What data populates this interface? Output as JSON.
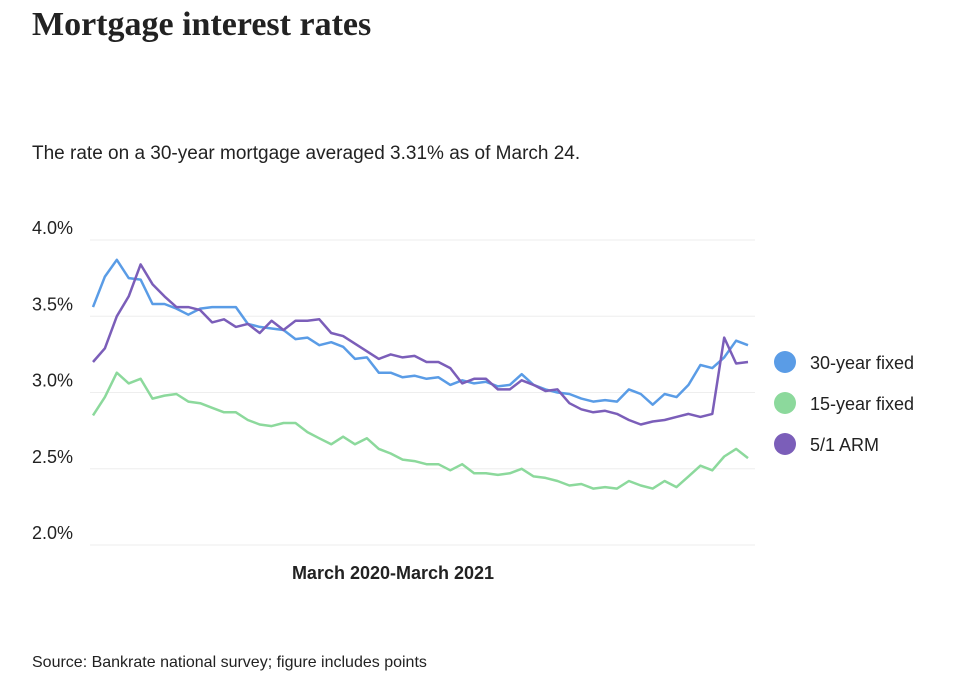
{
  "chart_data": {
    "type": "line",
    "title": "Mortgage interest rates",
    "subtitle": "The rate on a 30-year mortgage averaged 3.31% as of March 24.",
    "x_label": "March 2020-March 2021",
    "source": "Source: Bankrate national survey; figure includes points",
    "categories": [
      null,
      null,
      null,
      null,
      null,
      null,
      null,
      null,
      null,
      null,
      null,
      null,
      null,
      null,
      null,
      null,
      null,
      null,
      null,
      null,
      null,
      null,
      null,
      null,
      null,
      null,
      null,
      null,
      null,
      null,
      null,
      null,
      null,
      null,
      null,
      null,
      null,
      null,
      null,
      null,
      null,
      null,
      null,
      null,
      null,
      null,
      null,
      null,
      null,
      null,
      null,
      null,
      null,
      null,
      null,
      null
    ],
    "series": [
      {
        "name": "30-year fixed",
        "color": "#5a9ce6",
        "values": [
          3.56,
          3.76,
          3.87,
          3.75,
          3.74,
          3.58,
          3.58,
          3.55,
          3.51,
          3.55,
          3.56,
          3.56,
          3.56,
          3.45,
          3.43,
          3.42,
          3.41,
          3.35,
          3.36,
          3.31,
          3.33,
          3.3,
          3.22,
          3.23,
          3.13,
          3.13,
          3.1,
          3.11,
          3.09,
          3.1,
          3.05,
          3.08,
          3.06,
          3.07,
          3.04,
          3.05,
          3.12,
          3.05,
          3.02,
          3.0,
          2.99,
          2.96,
          2.94,
          2.95,
          2.94,
          3.02,
          2.99,
          2.92,
          2.99,
          2.97,
          3.05,
          3.18,
          3.16,
          3.23,
          3.34,
          3.31
        ]
      },
      {
        "name": "15-year fixed",
        "color": "#8cd99c",
        "values": [
          2.85,
          2.97,
          3.13,
          3.06,
          3.09,
          2.96,
          2.98,
          2.99,
          2.94,
          2.93,
          2.9,
          2.87,
          2.87,
          2.82,
          2.79,
          2.78,
          2.8,
          2.8,
          2.74,
          2.7,
          2.66,
          2.71,
          2.66,
          2.7,
          2.63,
          2.6,
          2.56,
          2.55,
          2.53,
          2.53,
          2.49,
          2.53,
          2.47,
          2.47,
          2.46,
          2.47,
          2.5,
          2.45,
          2.44,
          2.42,
          2.39,
          2.4,
          2.37,
          2.38,
          2.37,
          2.42,
          2.39,
          2.37,
          2.42,
          2.38,
          2.45,
          2.52,
          2.49,
          2.58,
          2.63,
          2.57
        ]
      },
      {
        "name": "5/1 ARM",
        "color": "#7b5eb9",
        "values": [
          3.2,
          3.29,
          3.5,
          3.63,
          3.84,
          3.71,
          3.63,
          3.56,
          3.56,
          3.54,
          3.46,
          3.48,
          3.43,
          3.45,
          3.39,
          3.47,
          3.41,
          3.47,
          3.47,
          3.48,
          3.39,
          3.37,
          3.32,
          3.27,
          3.22,
          3.25,
          3.23,
          3.24,
          3.2,
          3.2,
          3.16,
          3.06,
          3.09,
          3.09,
          3.02,
          3.02,
          3.08,
          3.05,
          3.01,
          3.02,
          2.93,
          2.89,
          2.87,
          2.88,
          2.86,
          2.82,
          2.79,
          2.81,
          2.82,
          2.84,
          2.86,
          2.84,
          2.86,
          3.36,
          3.19,
          3.2
        ]
      }
    ],
    "ylim": [
      2,
      4
    ],
    "yticks": [
      {
        "value": 2,
        "label": "2.0%"
      },
      {
        "value": 2.5,
        "label": "2.5%"
      },
      {
        "value": 3,
        "label": "3.0%"
      },
      {
        "value": 3.5,
        "label": "3.5%"
      },
      {
        "value": 4,
        "label": "4.0%"
      }
    ],
    "grid": true,
    "legend": "right"
  }
}
